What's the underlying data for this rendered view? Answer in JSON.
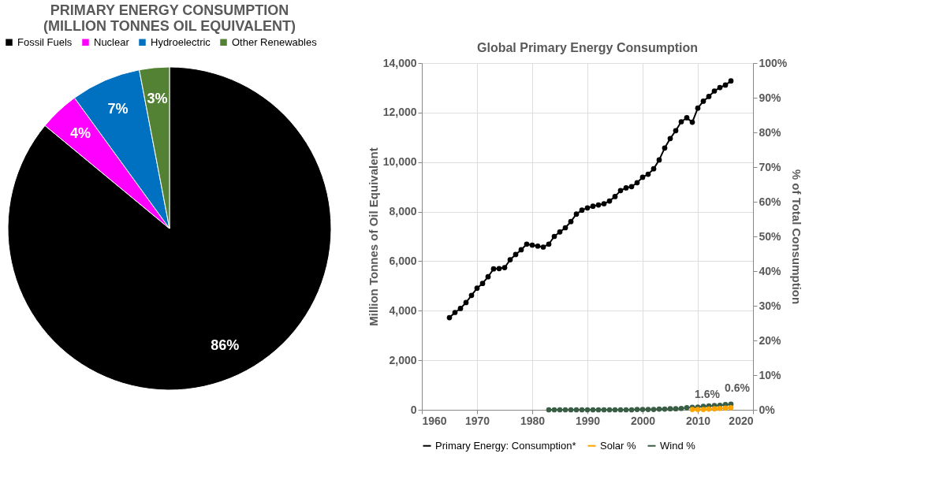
{
  "chart_data": [
    {
      "type": "pie",
      "title": "PRIMARY ENERGY CONSUMPTION\n(MILLION TONNES OIL EQUIVALENT)",
      "categories": [
        "Fossil Fuels",
        "Nuclear",
        "Hydroelectric",
        "Other Renewables"
      ],
      "values": [
        86,
        4,
        7,
        3
      ],
      "colors": [
        "#000000",
        "#ff00ff",
        "#0070c0",
        "#548235"
      ],
      "value_labels": [
        "86%",
        "4%",
        "7%",
        "3%"
      ],
      "legend": "top"
    },
    {
      "type": "line",
      "title": "Global Primary Energy Consumption",
      "ylabel": "Million Tonnes of Oil Equivalent",
      "y2label": "% of Total Consumption",
      "series": [
        {
          "name": "Primary Energy: Consumption*",
          "color": "#000000",
          "x": [
            1965,
            1966,
            1967,
            1968,
            1969,
            1970,
            1971,
            1972,
            1973,
            1974,
            1975,
            1976,
            1977,
            1978,
            1979,
            1980,
            1981,
            1982,
            1983,
            1984,
            1985,
            1986,
            1987,
            1988,
            1989,
            1990,
            1991,
            1992,
            1993,
            1994,
            1995,
            1996,
            1997,
            1998,
            1999,
            2000,
            2001,
            2002,
            2003,
            2004,
            2005,
            2006,
            2007,
            2008,
            2009,
            2010,
            2011,
            2012,
            2013,
            2014,
            2015,
            2016
          ],
          "values": [
            3720,
            3930,
            4090,
            4330,
            4620,
            4910,
            5100,
            5370,
            5690,
            5700,
            5740,
            6060,
            6270,
            6460,
            6690,
            6650,
            6610,
            6570,
            6690,
            7000,
            7180,
            7350,
            7600,
            7900,
            8060,
            8150,
            8220,
            8270,
            8320,
            8430,
            8610,
            8850,
            8960,
            9010,
            9170,
            9390,
            9510,
            9730,
            10090,
            10570,
            10950,
            11270,
            11630,
            11790,
            11610,
            12180,
            12460,
            12650,
            12870,
            13010,
            13110,
            13280
          ]
        },
        {
          "name": "Solar %",
          "color": "#ffa500",
          "axis": "y2",
          "x": [
            2009,
            2010,
            2011,
            2012,
            2013,
            2014,
            2015,
            2016
          ],
          "values": [
            0.1,
            0.1,
            0.1,
            0.2,
            0.3,
            0.4,
            0.5,
            0.6
          ],
          "value_labels": [
            null,
            null,
            null,
            null,
            null,
            null,
            null,
            "0.6%"
          ]
        },
        {
          "name": "Wind %",
          "color": "#3a5e45",
          "axis": "y2",
          "x": [
            1983,
            1984,
            1985,
            1986,
            1987,
            1988,
            1989,
            1990,
            1991,
            1992,
            1993,
            1994,
            1995,
            1996,
            1997,
            1998,
            1999,
            2000,
            2001,
            2002,
            2003,
            2004,
            2005,
            2006,
            2007,
            2008,
            2009,
            2010,
            2011,
            2012,
            2013,
            2014,
            2015,
            2016
          ],
          "values": [
            0,
            0,
            0,
            0,
            0,
            0,
            0,
            0,
            0,
            0,
            0,
            0,
            0,
            0,
            0,
            0,
            0.1,
            0.1,
            0.1,
            0.1,
            0.2,
            0.2,
            0.3,
            0.3,
            0.4,
            0.6,
            0.7,
            0.8,
            1.0,
            1.1,
            1.2,
            1.3,
            1.5,
            1.6
          ],
          "value_labels": [
            null,
            null,
            null,
            null,
            null,
            null,
            null,
            null,
            null,
            null,
            null,
            null,
            null,
            null,
            null,
            null,
            null,
            null,
            null,
            null,
            null,
            null,
            null,
            null,
            null,
            null,
            null,
            null,
            null,
            null,
            null,
            null,
            null,
            "1.6%"
          ]
        }
      ],
      "xlim": [
        1960,
        2020
      ],
      "xticks": [
        1960,
        1970,
        1980,
        1990,
        2000,
        2010,
        2020
      ],
      "ylim": [
        0,
        14000
      ],
      "yticks": [
        0,
        {
          "value": 2000,
          "label": "2,000"
        },
        {
          "value": 4000,
          "label": "4,000"
        },
        {
          "value": 6000,
          "label": "6,000"
        },
        {
          "value": 8000,
          "label": "8,000"
        },
        {
          "value": 10000,
          "label": "10,000"
        },
        {
          "value": 12000,
          "label": "12,000"
        },
        {
          "value": 14000,
          "label": "14,000"
        }
      ],
      "y2lim": [
        0,
        100
      ],
      "y2ticks": [
        {
          "value": 0,
          "label": "0%"
        },
        {
          "value": 10,
          "label": "10%"
        },
        {
          "value": 20,
          "label": "20%"
        },
        {
          "value": 30,
          "label": "30%"
        },
        {
          "value": 40,
          "label": "40%"
        },
        {
          "value": 50,
          "label": "50%"
        },
        {
          "value": 60,
          "label": "60%"
        },
        {
          "value": 70,
          "label": "70%"
        },
        {
          "value": 80,
          "label": "80%"
        },
        {
          "value": 90,
          "label": "90%"
        },
        {
          "value": 100,
          "label": "100%"
        }
      ],
      "grid": true,
      "legend": "bottom",
      "marker": "circle",
      "line_style": "solid"
    }
  ]
}
